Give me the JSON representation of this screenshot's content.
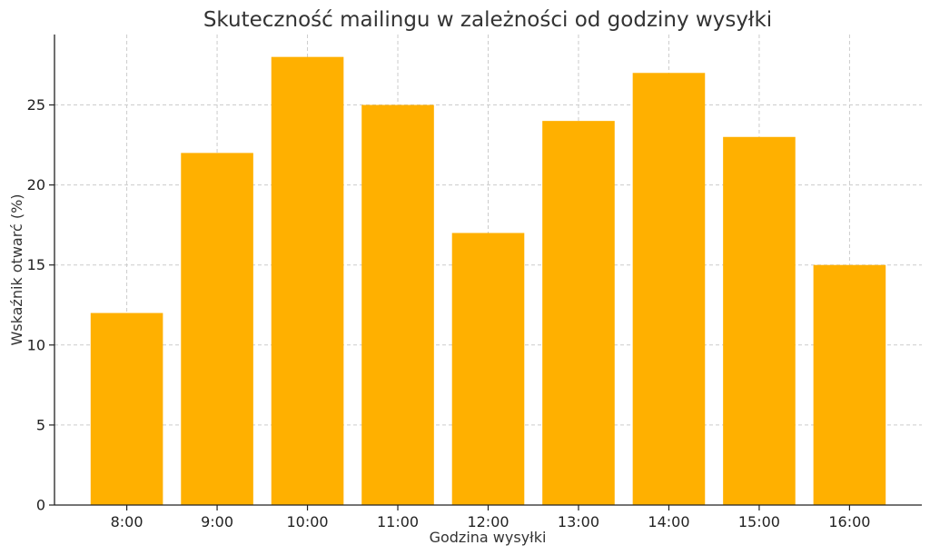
{
  "chart_data": {
    "type": "bar",
    "title": "Skuteczność mailingu w zależności od godziny wysyłki",
    "xlabel": "Godzina wysyłki",
    "ylabel": "Wskaźnik otwarć (%)",
    "categories": [
      "8:00",
      "9:00",
      "10:00",
      "11:00",
      "12:00",
      "13:00",
      "14:00",
      "15:00",
      "16:00"
    ],
    "values": [
      12,
      22,
      28,
      25,
      17,
      24,
      27,
      23,
      15
    ],
    "ylim": [
      0,
      29.4
    ],
    "yticks": [
      0,
      5,
      10,
      15,
      20,
      25
    ],
    "grid": true,
    "legend": "none",
    "bar_color": "#FFB000"
  }
}
